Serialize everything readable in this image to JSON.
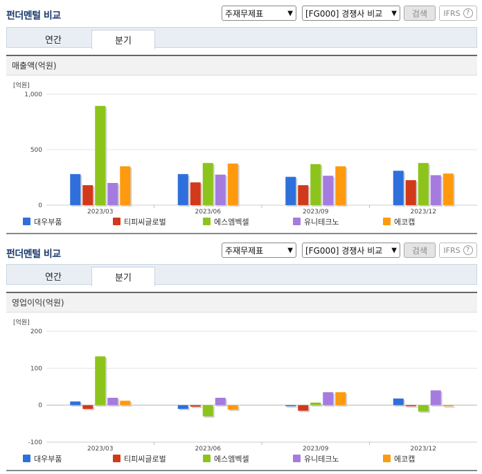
{
  "sections": [
    {
      "title": "펀더멘털 비교",
      "select1": "주재무제표",
      "select2": "[FG000] 경쟁사 비교",
      "search": "검색",
      "ifrs": "IFRS",
      "ifrs_help": "?",
      "tabs": [
        "연간",
        "분기"
      ],
      "active_tab": "분기",
      "chart_title": "매출액(억원)"
    },
    {
      "title": "펀더멘털 비교",
      "select1": "주재무제표",
      "select2": "[FG000] 경쟁사 비교",
      "search": "검색",
      "ifrs": "IFRS",
      "ifrs_help": "?",
      "tabs": [
        "연간",
        "분기"
      ],
      "active_tab": "분기",
      "chart_title": "영업이익(억원)"
    }
  ],
  "chart_data": [
    {
      "type": "bar",
      "title": "매출액(억원)",
      "unit": "[억원]",
      "categories": [
        "2023/03",
        "2023/06",
        "2023/09",
        "2023/12"
      ],
      "ylim": [
        0,
        1000
      ],
      "yticks": [
        0,
        500,
        1000
      ],
      "ytick_labels": [
        "0",
        "500",
        "1,000"
      ],
      "grid": true,
      "legend": "bottom",
      "series": [
        {
          "name": "대우부품",
          "color": "#2e6fdc",
          "values": [
            280,
            280,
            255,
            310
          ]
        },
        {
          "name": "티피씨글로벌",
          "color": "#d2391a",
          "values": [
            180,
            205,
            180,
            225
          ]
        },
        {
          "name": "에스엠벡셀",
          "color": "#8cc41c",
          "values": [
            895,
            380,
            370,
            380
          ]
        },
        {
          "name": "유니테크노",
          "color": "#a57be0",
          "values": [
            200,
            275,
            265,
            270
          ]
        },
        {
          "name": "에코캡",
          "color": "#ff9a0e",
          "values": [
            350,
            375,
            350,
            285
          ]
        }
      ]
    },
    {
      "type": "bar",
      "title": "영업이익(억원)",
      "unit": "[억원]",
      "categories": [
        "2023/03",
        "2023/06",
        "2023/09",
        "2023/12"
      ],
      "ylim": [
        -100,
        200
      ],
      "yticks": [
        -100,
        0,
        100,
        200
      ],
      "ytick_labels": [
        "-100",
        "0",
        "100",
        "200"
      ],
      "grid": true,
      "legend": "bottom",
      "series": [
        {
          "name": "대우부품",
          "color": "#2e6fdc",
          "values": [
            10,
            -10,
            -3,
            18
          ]
        },
        {
          "name": "티피씨글로벌",
          "color": "#d2391a",
          "values": [
            -10,
            -4,
            -15,
            -3
          ]
        },
        {
          "name": "에스엠벡셀",
          "color": "#8cc41c",
          "values": [
            132,
            -30,
            7,
            -17
          ]
        },
        {
          "name": "유니테크노",
          "color": "#a57be0",
          "values": [
            20,
            20,
            35,
            40
          ]
        },
        {
          "name": "에코캡",
          "color": "#ff9a0e",
          "values": [
            12,
            -12,
            35,
            -3
          ]
        }
      ]
    }
  ]
}
